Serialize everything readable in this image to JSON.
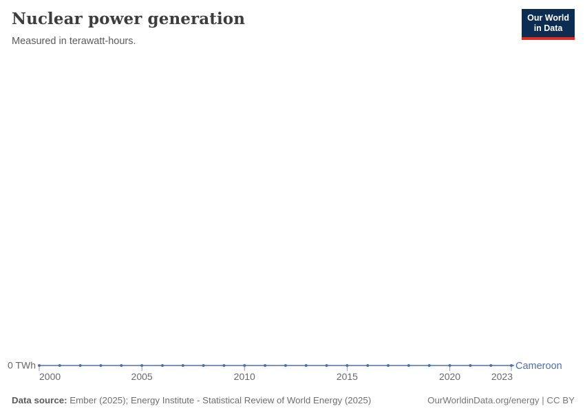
{
  "header": {
    "title": "Nuclear power generation",
    "subtitle": "Measured in terawatt-hours.",
    "logo": {
      "line1": "Our World",
      "line2": "in Data"
    }
  },
  "chart_data": {
    "type": "line",
    "title": "Nuclear power generation",
    "unit": "terawatt-hours",
    "x": [
      2000,
      2001,
      2002,
      2003,
      2004,
      2005,
      2006,
      2007,
      2008,
      2009,
      2010,
      2011,
      2012,
      2013,
      2014,
      2015,
      2016,
      2017,
      2018,
      2019,
      2020,
      2021,
      2022,
      2023
    ],
    "series": [
      {
        "name": "Cameroon",
        "values": [
          0,
          0,
          0,
          0,
          0,
          0,
          0,
          0,
          0,
          0,
          0,
          0,
          0,
          0,
          0,
          0,
          0,
          0,
          0,
          0,
          0,
          0,
          0,
          0
        ]
      }
    ],
    "x_tick_labels": [
      "2000",
      "2005",
      "2010",
      "2015",
      "2020",
      "2023"
    ],
    "x_ticks": [
      2000,
      2005,
      2010,
      2015,
      2020,
      2023
    ],
    "y_axis_tick_label": "0 TWh",
    "xlim": [
      2000,
      2023
    ],
    "ylim": [
      0,
      1
    ],
    "grid": false,
    "legend": "end-of-line-label",
    "markers": true
  },
  "footer": {
    "data_source_label": "Data source:",
    "data_source_text": " Ember (2025); Energy Institute - Statistical Review of World Energy (2025)",
    "link_text": "OurWorldinData.org/energy | CC BY"
  },
  "colors": {
    "line": "#4c6fae",
    "axis_text": "#686868",
    "tick": "#999999",
    "title_text": "#3d3d3d",
    "subtitle_text": "#5b5b5b",
    "logo_bg": "#0c2c52",
    "logo_accent": "#dc2e22"
  }
}
